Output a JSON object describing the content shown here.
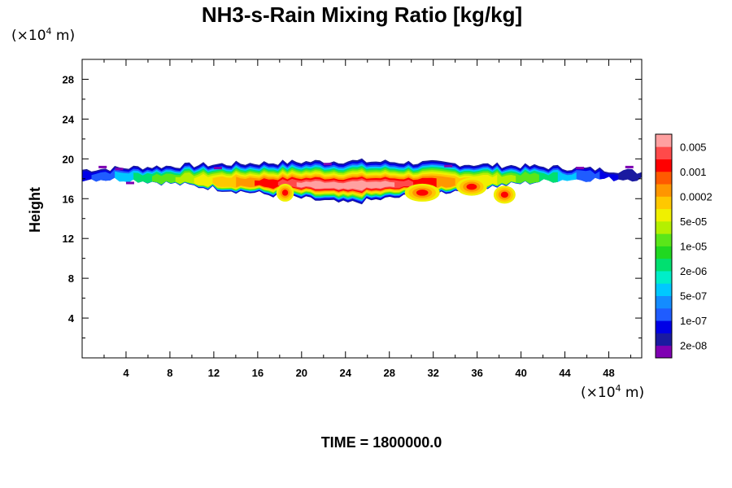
{
  "chart_data": {
    "type": "heatmap",
    "title": "NH3-s-Rain Mixing Ratio [kg/kg]",
    "xlabel": "",
    "ylabel": "Height",
    "x_unit_prefix": "(×10",
    "x_unit_exp": "4",
    "x_unit_suffix": " m)",
    "y_unit_prefix": "(×10",
    "y_unit_exp": "4",
    "y_unit_suffix": " m)",
    "xlim": [
      0,
      51
    ],
    "ylim": [
      0,
      30
    ],
    "x_ticks": [
      4,
      8,
      12,
      16,
      20,
      24,
      28,
      32,
      36,
      40,
      44,
      48
    ],
    "y_ticks": [
      4,
      8,
      12,
      16,
      20,
      24,
      28
    ],
    "colorbar": {
      "colors": [
        "#7f00b2",
        "#1a1aa0",
        "#0000e6",
        "#1f5cff",
        "#148cff",
        "#00c8ff",
        "#00eec8",
        "#00e070",
        "#20d820",
        "#5ae619",
        "#b4f000",
        "#f0f000",
        "#ffc800",
        "#ff9600",
        "#ff5a00",
        "#ff0000",
        "#ff4a4a",
        "#ffa0a0"
      ],
      "labels": [
        "2e-08",
        "1e-07",
        "5e-07",
        "2e-06",
        "1e-05",
        "5e-05",
        "0.0002",
        "0.001",
        "0.005"
      ]
    },
    "cloud_layer": {
      "x_range": [
        0,
        51
      ],
      "base_height_center": 15.5,
      "base_height_edges": 18.0,
      "top_height_center": 19.8,
      "top_height_edges": 19.3,
      "max_value_x": 24,
      "max_value_height": 17
    },
    "footer": "TIME = 1800000.0"
  }
}
